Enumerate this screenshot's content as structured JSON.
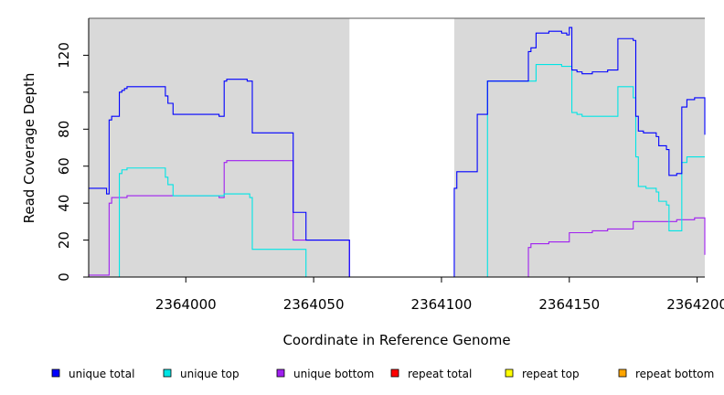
{
  "chart_data": {
    "type": "line",
    "xlabel": "Coordinate in Reference Genome",
    "ylabel": "Read Coverage Depth",
    "xlim": [
      2363962,
      2364203
    ],
    "ylim": [
      0,
      140
    ],
    "x_ticks": [
      2364000,
      2364050,
      2364100,
      2364150,
      2364200
    ],
    "x_tick_labels": [
      "2364000",
      "2364050",
      "2364100",
      "2364150",
      "2364200"
    ],
    "y_ticks": [
      0,
      20,
      40,
      60,
      80,
      120
    ],
    "y_tick_labels": [
      "0",
      "20",
      "40",
      "60",
      "80",
      "120"
    ],
    "extra_y_ticks": [
      100
    ],
    "covered_regions": [
      [
        2363962,
        2364064
      ],
      [
        2364105,
        2364203
      ]
    ],
    "series": [
      {
        "name": "unique total",
        "color": "#0000ff",
        "points": [
          [
            2363962,
            48
          ],
          [
            2363969,
            48
          ],
          [
            2363969,
            45
          ],
          [
            2363970,
            45
          ],
          [
            2363970,
            85
          ],
          [
            2363971,
            85
          ],
          [
            2363971,
            87
          ],
          [
            2363974,
            87
          ],
          [
            2363974,
            100
          ],
          [
            2363975,
            100
          ],
          [
            2363975,
            101
          ],
          [
            2363976,
            101
          ],
          [
            2363976,
            102
          ],
          [
            2363977,
            102
          ],
          [
            2363977,
            103
          ],
          [
            2363992,
            103
          ],
          [
            2363992,
            98
          ],
          [
            2363993,
            98
          ],
          [
            2363993,
            94
          ],
          [
            2363995,
            94
          ],
          [
            2363995,
            88
          ],
          [
            2364013,
            88
          ],
          [
            2364013,
            87
          ],
          [
            2364015,
            87
          ],
          [
            2364015,
            106
          ],
          [
            2364016,
            106
          ],
          [
            2364016,
            107
          ],
          [
            2364024,
            107
          ],
          [
            2364024,
            106
          ],
          [
            2364026,
            106
          ],
          [
            2364026,
            78
          ],
          [
            2364042,
            78
          ],
          [
            2364042,
            35
          ],
          [
            2364047,
            35
          ],
          [
            2364047,
            20
          ],
          [
            2364064,
            20
          ],
          [
            2364064,
            0
          ],
          [
            2364105,
            0
          ],
          [
            2364105,
            48
          ],
          [
            2364106,
            48
          ],
          [
            2364106,
            57
          ],
          [
            2364114,
            57
          ],
          [
            2364114,
            88
          ],
          [
            2364118,
            88
          ],
          [
            2364118,
            106
          ],
          [
            2364134,
            106
          ],
          [
            2364134,
            122
          ],
          [
            2364135,
            122
          ],
          [
            2364135,
            124
          ],
          [
            2364137,
            124
          ],
          [
            2364137,
            132
          ],
          [
            2364142,
            132
          ],
          [
            2364142,
            133
          ],
          [
            2364147,
            133
          ],
          [
            2364147,
            132
          ],
          [
            2364149,
            132
          ],
          [
            2364149,
            131
          ],
          [
            2364150,
            131
          ],
          [
            2364150,
            135
          ],
          [
            2364151,
            135
          ],
          [
            2364151,
            112
          ],
          [
            2364153,
            112
          ],
          [
            2364153,
            111
          ],
          [
            2364155,
            111
          ],
          [
            2364155,
            110
          ],
          [
            2364159,
            110
          ],
          [
            2364159,
            111
          ],
          [
            2364165,
            111
          ],
          [
            2364165,
            112
          ],
          [
            2364169,
            112
          ],
          [
            2364169,
            129
          ],
          [
            2364175,
            129
          ],
          [
            2364175,
            128
          ],
          [
            2364176,
            128
          ],
          [
            2364176,
            87
          ],
          [
            2364177,
            87
          ],
          [
            2364177,
            79
          ],
          [
            2364179,
            79
          ],
          [
            2364179,
            78
          ],
          [
            2364184,
            78
          ],
          [
            2364184,
            76
          ],
          [
            2364185,
            76
          ],
          [
            2364185,
            71
          ],
          [
            2364188,
            71
          ],
          [
            2364188,
            69
          ],
          [
            2364189,
            69
          ],
          [
            2364189,
            55
          ],
          [
            2364192,
            55
          ],
          [
            2364192,
            56
          ],
          [
            2364194,
            56
          ],
          [
            2364194,
            92
          ],
          [
            2364196,
            92
          ],
          [
            2364196,
            96
          ],
          [
            2364199,
            96
          ],
          [
            2364199,
            97
          ],
          [
            2364203,
            97
          ],
          [
            2364203,
            77
          ]
        ]
      },
      {
        "name": "unique top",
        "color": "#00e5e5",
        "points": [
          [
            2363962,
            0
          ],
          [
            2363974,
            0
          ],
          [
            2363974,
            56
          ],
          [
            2363975,
            56
          ],
          [
            2363975,
            58
          ],
          [
            2363977,
            58
          ],
          [
            2363977,
            59
          ],
          [
            2363992,
            59
          ],
          [
            2363992,
            54
          ],
          [
            2363993,
            54
          ],
          [
            2363993,
            50
          ],
          [
            2363995,
            50
          ],
          [
            2363995,
            44
          ],
          [
            2364015,
            44
          ],
          [
            2364015,
            45
          ],
          [
            2364025,
            45
          ],
          [
            2364025,
            43
          ],
          [
            2364026,
            43
          ],
          [
            2364026,
            15
          ],
          [
            2364047,
            15
          ],
          [
            2364047,
            0
          ],
          [
            2364118,
            0
          ],
          [
            2364118,
            106
          ],
          [
            2364137,
            106
          ],
          [
            2364137,
            115
          ],
          [
            2364147,
            115
          ],
          [
            2364147,
            114
          ],
          [
            2364151,
            114
          ],
          [
            2364151,
            89
          ],
          [
            2364153,
            89
          ],
          [
            2364153,
            88
          ],
          [
            2364155,
            88
          ],
          [
            2364155,
            87
          ],
          [
            2364169,
            87
          ],
          [
            2364169,
            103
          ],
          [
            2364175,
            103
          ],
          [
            2364175,
            97
          ],
          [
            2364176,
            97
          ],
          [
            2364176,
            65
          ],
          [
            2364177,
            65
          ],
          [
            2364177,
            49
          ],
          [
            2364180,
            49
          ],
          [
            2364180,
            48
          ],
          [
            2364184,
            48
          ],
          [
            2364184,
            46
          ],
          [
            2364185,
            46
          ],
          [
            2364185,
            41
          ],
          [
            2364188,
            41
          ],
          [
            2364188,
            39
          ],
          [
            2364189,
            39
          ],
          [
            2364189,
            25
          ],
          [
            2364194,
            25
          ],
          [
            2364194,
            62
          ],
          [
            2364196,
            62
          ],
          [
            2364196,
            65
          ],
          [
            2364203,
            65
          ]
        ]
      },
      {
        "name": "unique bottom",
        "color": "#a020f0",
        "points": [
          [
            2363962,
            1
          ],
          [
            2363970,
            1
          ],
          [
            2363970,
            40
          ],
          [
            2363971,
            40
          ],
          [
            2363971,
            43
          ],
          [
            2363977,
            43
          ],
          [
            2363977,
            44
          ],
          [
            2364013,
            44
          ],
          [
            2364013,
            43
          ],
          [
            2364015,
            43
          ],
          [
            2364015,
            62
          ],
          [
            2364016,
            62
          ],
          [
            2364016,
            63
          ],
          [
            2364042,
            63
          ],
          [
            2364042,
            20
          ],
          [
            2364064,
            20
          ],
          [
            2364064,
            0
          ],
          [
            2364134,
            0
          ],
          [
            2364134,
            16
          ],
          [
            2364135,
            16
          ],
          [
            2364135,
            18
          ],
          [
            2364142,
            18
          ],
          [
            2364142,
            19
          ],
          [
            2364150,
            19
          ],
          [
            2364150,
            24
          ],
          [
            2364159,
            24
          ],
          [
            2364159,
            25
          ],
          [
            2364165,
            25
          ],
          [
            2364165,
            26
          ],
          [
            2364175,
            26
          ],
          [
            2364175,
            30
          ],
          [
            2364192,
            30
          ],
          [
            2364192,
            31
          ],
          [
            2364199,
            31
          ],
          [
            2364199,
            32
          ],
          [
            2364203,
            32
          ],
          [
            2364203,
            12
          ]
        ]
      },
      {
        "name": "repeat total",
        "color": "#ff0000",
        "points": [
          [
            2363962,
            0
          ],
          [
            2364203,
            0
          ]
        ]
      },
      {
        "name": "repeat top",
        "color": "#ffff00",
        "points": [
          [
            2363962,
            0
          ],
          [
            2364203,
            0
          ]
        ]
      },
      {
        "name": "repeat bottom",
        "color": "#ffa500",
        "points": [
          [
            2363962,
            0
          ],
          [
            2364203,
            0
          ]
        ]
      }
    ],
    "legend_placement": "bottom",
    "grid": false,
    "background": "#d9d9d9"
  }
}
